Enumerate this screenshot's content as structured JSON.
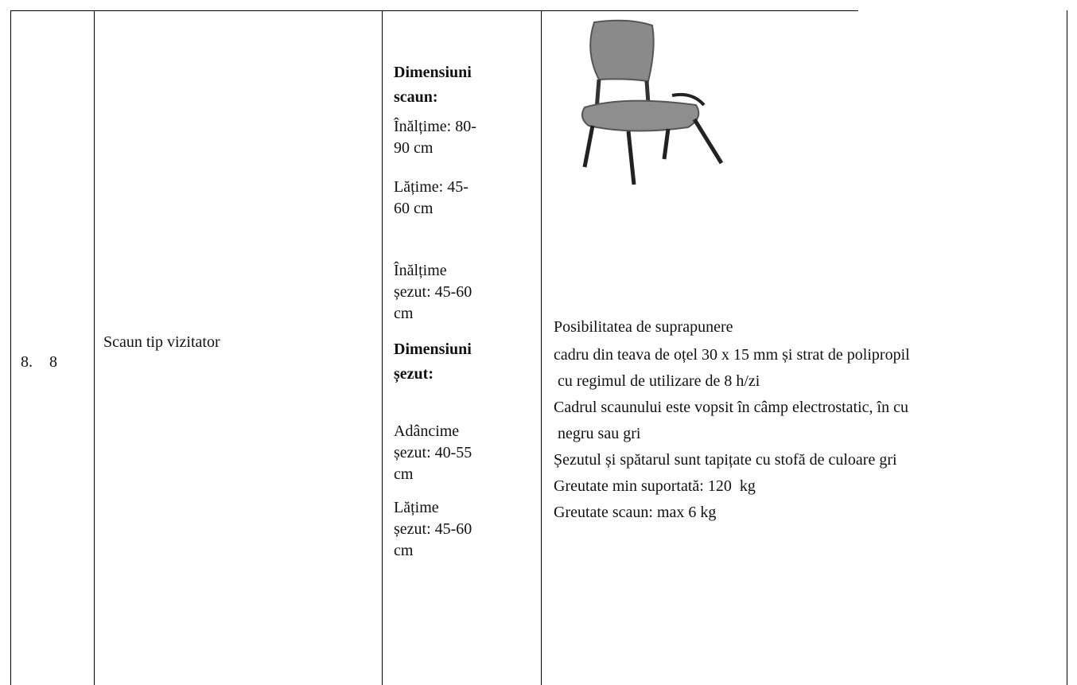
{
  "table": {
    "rows": [
      {
        "number": "8.",
        "index": "8",
        "name": "Scaun tip vizitator",
        "dimensions": [
          {
            "heading": "Dimensiuni\nscaun:",
            "items": [
              "Înălțime: 80-\n90 cm",
              "Lățime: 45-\n60 cm",
              "Înălțime\nșezut: 45-60\ncm"
            ]
          },
          {
            "heading": "Dimensiuni\nșezut:",
            "items": [
              "Adâncime\nșezut: 40-55\ncm",
              "Lățime\nșezut: 45-60\ncm"
            ]
          }
        ],
        "description": [
          "Posibilitatea de suprapunere",
          "cadru din teava de oțel 30 x 15 mm și strat de polipropil",
          " cu regimul de utilizare de 8 h/zi",
          "Cadrul scaunului este vopsit în câmp electrostatic, în cu",
          " negru sau gri",
          "Șezutul și spătarul sunt tapițate cu stofă de culoare gri",
          "Greutate min suportată: 120  kg",
          "Greutate scaun: max 6 kg"
        ]
      }
    ]
  }
}
